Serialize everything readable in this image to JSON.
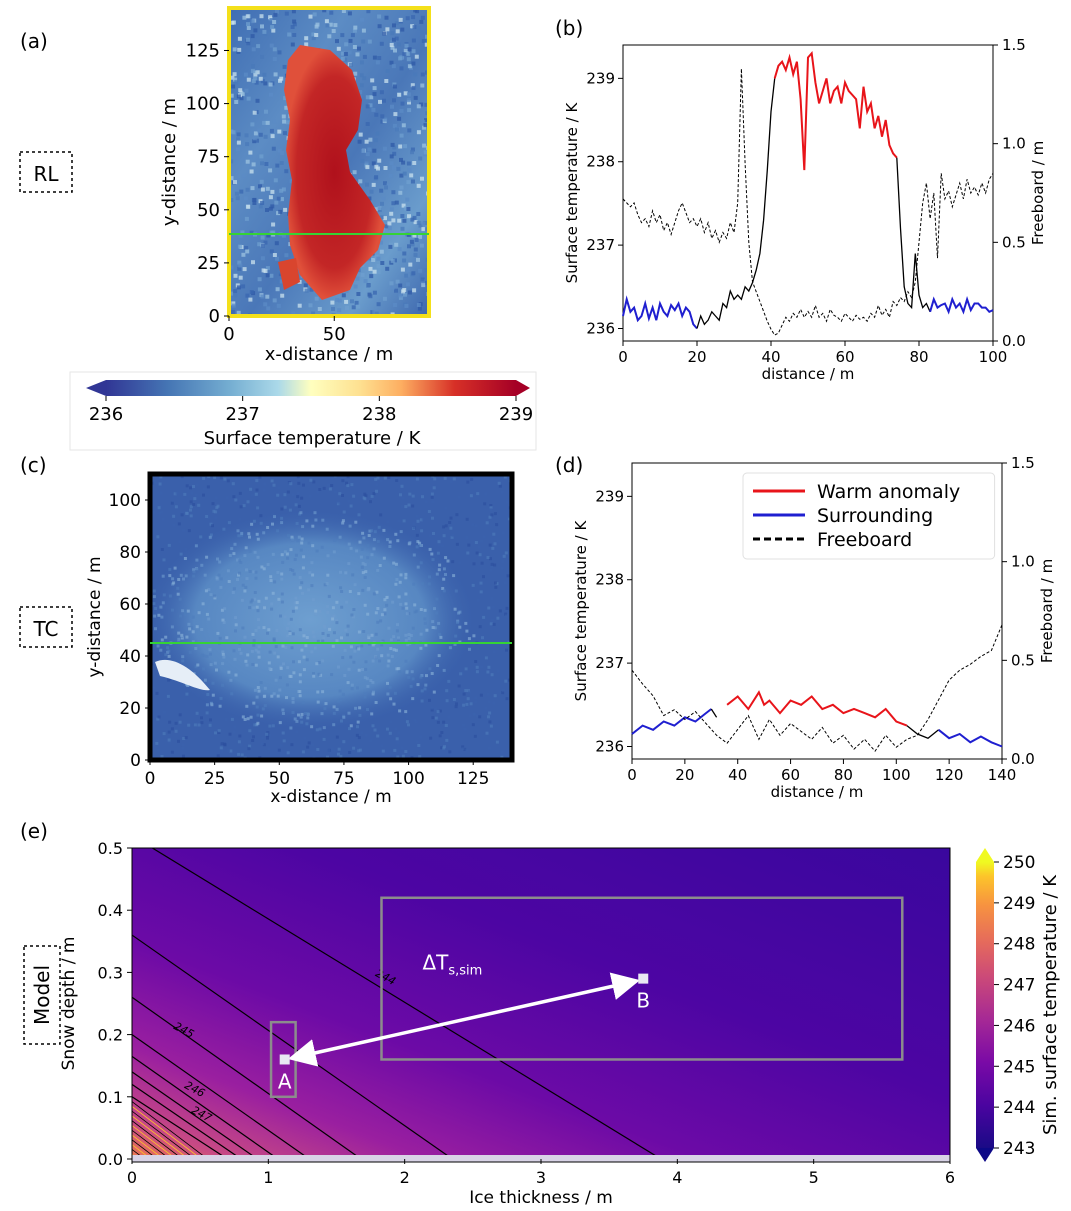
{
  "colors": {
    "warm": "#e8141a",
    "surround": "#1f1fd0",
    "highlight": "#35d335",
    "frame_rl": "#f4e01a",
    "frame_tc": "#000000",
    "box": "#8c8c8c"
  },
  "panel_labels": {
    "a": "(a)",
    "b": "(b)",
    "c": "(c)",
    "d": "(d)",
    "e": "(e)"
  },
  "row_labels": {
    "rl": "RL",
    "tc": "TC",
    "model": "Model"
  },
  "chart_data": [
    {
      "id": "a",
      "type": "heatmap",
      "xlabel": "x-distance / m",
      "ylabel": "y-distance / m",
      "xlim": [
        0,
        95
      ],
      "ylim": [
        0,
        145
      ],
      "xticks": [
        0,
        50
      ],
      "yticks": [
        0,
        25,
        50,
        75,
        100,
        125
      ],
      "transect_y": 40,
      "colorbar": {
        "label": "Surface temperature / K",
        "range": [
          236,
          239
        ],
        "ticks": [
          236,
          237,
          238,
          239
        ],
        "extend": "both"
      }
    },
    {
      "id": "b",
      "type": "line",
      "xlabel": "distance / m",
      "ylabel": "Surface temperature / K",
      "ylabel_right": "Freeboard / m",
      "xlim": [
        0,
        100
      ],
      "ylim": [
        235.85,
        239.4
      ],
      "ylim_right": [
        0,
        1.5
      ],
      "xticks": [
        0,
        20,
        40,
        60,
        80,
        100
      ],
      "yticks": [
        236,
        237,
        238,
        239
      ],
      "yticks_right": [
        0.0,
        0.5,
        1.0,
        1.5
      ],
      "series": [
        {
          "role": "temperature",
          "x": [
            0,
            1,
            2,
            3,
            4,
            5,
            6,
            7,
            8,
            9,
            10,
            11,
            12,
            13,
            14,
            15,
            16,
            17,
            18,
            19,
            20,
            21,
            22,
            23,
            24,
            25,
            26,
            27,
            28,
            29,
            30,
            31,
            32,
            33,
            34,
            35,
            36,
            37,
            38,
            39,
            40,
            41,
            42,
            43,
            44,
            45,
            46,
            47,
            48,
            49,
            50,
            51,
            52,
            53,
            54,
            55,
            56,
            57,
            58,
            59,
            60,
            61,
            62,
            63,
            64,
            65,
            66,
            67,
            68,
            69,
            70,
            71,
            72,
            73,
            74,
            75,
            76,
            77,
            78,
            79,
            80,
            81,
            82,
            83,
            84,
            85,
            86,
            87,
            88,
            89,
            90,
            91,
            92,
            93,
            94,
            95,
            96,
            97,
            98,
            99,
            100
          ],
          "y": [
            236.15,
            236.35,
            236.2,
            236.25,
            236.1,
            236.15,
            236.3,
            236.12,
            236.25,
            236.1,
            236.3,
            236.2,
            236.15,
            236.28,
            236.22,
            236.3,
            236.15,
            236.25,
            236.2,
            236.05,
            236.0,
            236.15,
            236.05,
            236.1,
            236.2,
            236.15,
            236.1,
            236.3,
            236.25,
            236.45,
            236.35,
            236.4,
            236.35,
            236.5,
            236.45,
            236.55,
            236.7,
            236.9,
            237.3,
            237.9,
            238.6,
            239.0,
            239.15,
            239.2,
            239.1,
            239.25,
            239.05,
            239.2,
            238.75,
            237.9,
            239.25,
            239.3,
            238.95,
            238.7,
            238.85,
            239.0,
            238.7,
            238.85,
            238.9,
            238.7,
            238.95,
            238.85,
            238.8,
            238.75,
            238.4,
            238.9,
            238.6,
            238.7,
            238.4,
            238.55,
            238.3,
            238.5,
            238.2,
            238.1,
            238.05,
            237.2,
            236.5,
            236.3,
            236.25,
            236.9,
            236.4,
            236.25,
            236.3,
            236.2,
            236.35,
            236.25,
            236.28,
            236.3,
            236.2,
            236.35,
            236.25,
            236.3,
            236.2,
            236.35,
            236.22,
            236.3,
            236.3,
            236.25,
            236.25,
            236.2,
            236.22
          ],
          "segments": [
            {
              "from": 0,
              "to": 20,
              "color": "surround"
            },
            {
              "from": 20,
              "to": 41,
              "color": "black"
            },
            {
              "from": 41,
              "to": 74,
              "color": "warm"
            },
            {
              "from": 74,
              "to": 83,
              "color": "black"
            },
            {
              "from": 83,
              "to": 100,
              "color": "surround"
            }
          ]
        },
        {
          "role": "freeboard",
          "axis": "right",
          "dashed": true,
          "x": [
            0,
            1,
            2,
            3,
            4,
            5,
            6,
            7,
            8,
            9,
            10,
            11,
            12,
            13,
            14,
            15,
            16,
            17,
            18,
            19,
            20,
            21,
            22,
            23,
            24,
            25,
            26,
            27,
            28,
            29,
            30,
            31,
            32,
            33,
            34,
            35,
            36,
            37,
            38,
            39,
            40,
            41,
            42,
            43,
            44,
            45,
            46,
            47,
            48,
            49,
            50,
            51,
            52,
            53,
            54,
            55,
            56,
            57,
            58,
            59,
            60,
            61,
            62,
            63,
            64,
            65,
            66,
            67,
            68,
            69,
            70,
            71,
            72,
            73,
            74,
            75,
            76,
            77,
            78,
            79,
            80,
            81,
            82,
            83,
            84,
            85,
            86,
            87,
            88,
            89,
            90,
            91,
            92,
            93,
            94,
            95,
            96,
            97,
            98,
            99,
            100
          ],
          "y": [
            0.72,
            0.7,
            0.68,
            0.7,
            0.64,
            0.6,
            0.62,
            0.58,
            0.66,
            0.6,
            0.64,
            0.56,
            0.6,
            0.54,
            0.6,
            0.66,
            0.7,
            0.65,
            0.6,
            0.62,
            0.58,
            0.62,
            0.55,
            0.6,
            0.52,
            0.56,
            0.5,
            0.55,
            0.52,
            0.6,
            0.55,
            0.7,
            1.38,
            0.9,
            0.5,
            0.3,
            0.25,
            0.2,
            0.15,
            0.1,
            0.06,
            0.03,
            0.04,
            0.08,
            0.12,
            0.1,
            0.14,
            0.12,
            0.16,
            0.12,
            0.15,
            0.12,
            0.18,
            0.12,
            0.14,
            0.1,
            0.16,
            0.13,
            0.12,
            0.1,
            0.14,
            0.12,
            0.1,
            0.13,
            0.11,
            0.12,
            0.1,
            0.14,
            0.12,
            0.18,
            0.13,
            0.16,
            0.12,
            0.2,
            0.18,
            0.22,
            0.2,
            0.25,
            0.22,
            0.3,
            0.5,
            0.7,
            0.8,
            0.62,
            0.75,
            0.42,
            0.85,
            0.72,
            0.76,
            0.68,
            0.74,
            0.8,
            0.72,
            0.82,
            0.75,
            0.78,
            0.74,
            0.8,
            0.75,
            0.82,
            0.85
          ]
        }
      ]
    },
    {
      "id": "c",
      "type": "heatmap",
      "xlabel": "x-distance / m",
      "ylabel": "y-distance / m",
      "xlim": [
        0,
        140
      ],
      "ylim": [
        0,
        110
      ],
      "xticks": [
        0,
        25,
        50,
        75,
        100,
        125
      ],
      "yticks": [
        0,
        20,
        40,
        60,
        80,
        100
      ],
      "transect_y": 45
    },
    {
      "id": "d",
      "type": "line",
      "xlabel": "distance / m",
      "ylabel": "Surface temperature / K",
      "ylabel_right": "Freeboard / m",
      "xlim": [
        0,
        140
      ],
      "ylim": [
        235.85,
        239.4
      ],
      "ylim_right": [
        0,
        1.5
      ],
      "xticks": [
        0,
        20,
        40,
        60,
        80,
        100,
        120,
        140
      ],
      "yticks": [
        236,
        237,
        238,
        239
      ],
      "yticks_right": [
        0.0,
        0.5,
        1.0,
        1.5
      ],
      "legend": {
        "position": "top-right",
        "entries": [
          {
            "label": "Warm anomaly",
            "color": "warm",
            "style": "solid"
          },
          {
            "label": "Surrounding",
            "color": "surround",
            "style": "solid"
          },
          {
            "label": "Freeboard",
            "color": "black",
            "style": "dashed"
          }
        ]
      },
      "series": [
        {
          "role": "temperature",
          "x": [
            0,
            4,
            8,
            12,
            16,
            20,
            24,
            28,
            30,
            32,
            36,
            40,
            44,
            48,
            50,
            52,
            56,
            60,
            64,
            68,
            72,
            76,
            80,
            84,
            88,
            92,
            96,
            100,
            104,
            108,
            112,
            116,
            120,
            124,
            128,
            132,
            136,
            140
          ],
          "y": [
            236.15,
            236.25,
            236.2,
            236.3,
            236.25,
            236.35,
            236.3,
            236.4,
            236.45,
            236.35,
            236.5,
            236.6,
            236.45,
            236.65,
            236.5,
            236.55,
            236.4,
            236.55,
            236.5,
            236.6,
            236.45,
            236.5,
            236.4,
            236.45,
            236.4,
            236.35,
            236.45,
            236.3,
            236.25,
            236.15,
            236.1,
            236.2,
            236.1,
            236.15,
            236.05,
            236.12,
            236.05,
            236.0
          ],
          "segments": [
            {
              "from": 0,
              "to": 30,
              "color": "surround"
            },
            {
              "from": 30,
              "to": 34,
              "color": "black"
            },
            {
              "from": 34,
              "to": 104,
              "color": "warm"
            },
            {
              "from": 104,
              "to": 116,
              "color": "black"
            },
            {
              "from": 116,
              "to": 140,
              "color": "surround"
            }
          ]
        },
        {
          "role": "freeboard",
          "axis": "right",
          "dashed": true,
          "x": [
            0,
            4,
            8,
            12,
            16,
            20,
            24,
            28,
            32,
            36,
            40,
            44,
            48,
            52,
            56,
            60,
            64,
            68,
            72,
            76,
            80,
            84,
            88,
            92,
            96,
            100,
            104,
            108,
            112,
            116,
            120,
            124,
            128,
            132,
            136,
            140
          ],
          "y": [
            0.45,
            0.38,
            0.32,
            0.22,
            0.25,
            0.2,
            0.24,
            0.18,
            0.12,
            0.08,
            0.15,
            0.22,
            0.1,
            0.2,
            0.12,
            0.18,
            0.14,
            0.1,
            0.16,
            0.08,
            0.12,
            0.05,
            0.1,
            0.04,
            0.12,
            0.06,
            0.1,
            0.12,
            0.2,
            0.3,
            0.4,
            0.45,
            0.48,
            0.52,
            0.55,
            0.68
          ]
        }
      ]
    },
    {
      "id": "e",
      "type": "heatmap",
      "xlabel": "Ice thickness / m",
      "ylabel": "Snow depth / m",
      "xlim": [
        0,
        6
      ],
      "ylim": [
        0,
        0.5
      ],
      "xticks": [
        0,
        1,
        2,
        3,
        4,
        5,
        6
      ],
      "yticks": [
        0.0,
        0.1,
        0.2,
        0.3,
        0.4,
        0.5
      ],
      "contour_labels": [
        {
          "text": "244",
          "x": 1.78,
          "y": 0.295
        },
        {
          "text": "245",
          "x": 0.3,
          "y": 0.21
        },
        {
          "text": "246",
          "x": 0.38,
          "y": 0.115
        },
        {
          "text": "247",
          "x": 0.43,
          "y": 0.075
        }
      ],
      "points": [
        {
          "label": "A",
          "x": 1.12,
          "y": 0.16
        },
        {
          "label": "B",
          "x": 3.75,
          "y": 0.29
        }
      ],
      "boxes": [
        {
          "x": [
            1.02,
            1.2
          ],
          "y": [
            0.1,
            0.22
          ]
        },
        {
          "x": [
            1.83,
            5.65
          ],
          "y": [
            0.16,
            0.42
          ]
        }
      ],
      "arrow_label": "ΔT",
      "arrow_label_sub": "s,sim",
      "colorbar": {
        "label": "Sim. surface temperature / K",
        "range": [
          243,
          250
        ],
        "ticks": [
          243,
          244,
          245,
          246,
          247,
          248,
          249,
          250
        ],
        "extend": "both"
      }
    }
  ]
}
